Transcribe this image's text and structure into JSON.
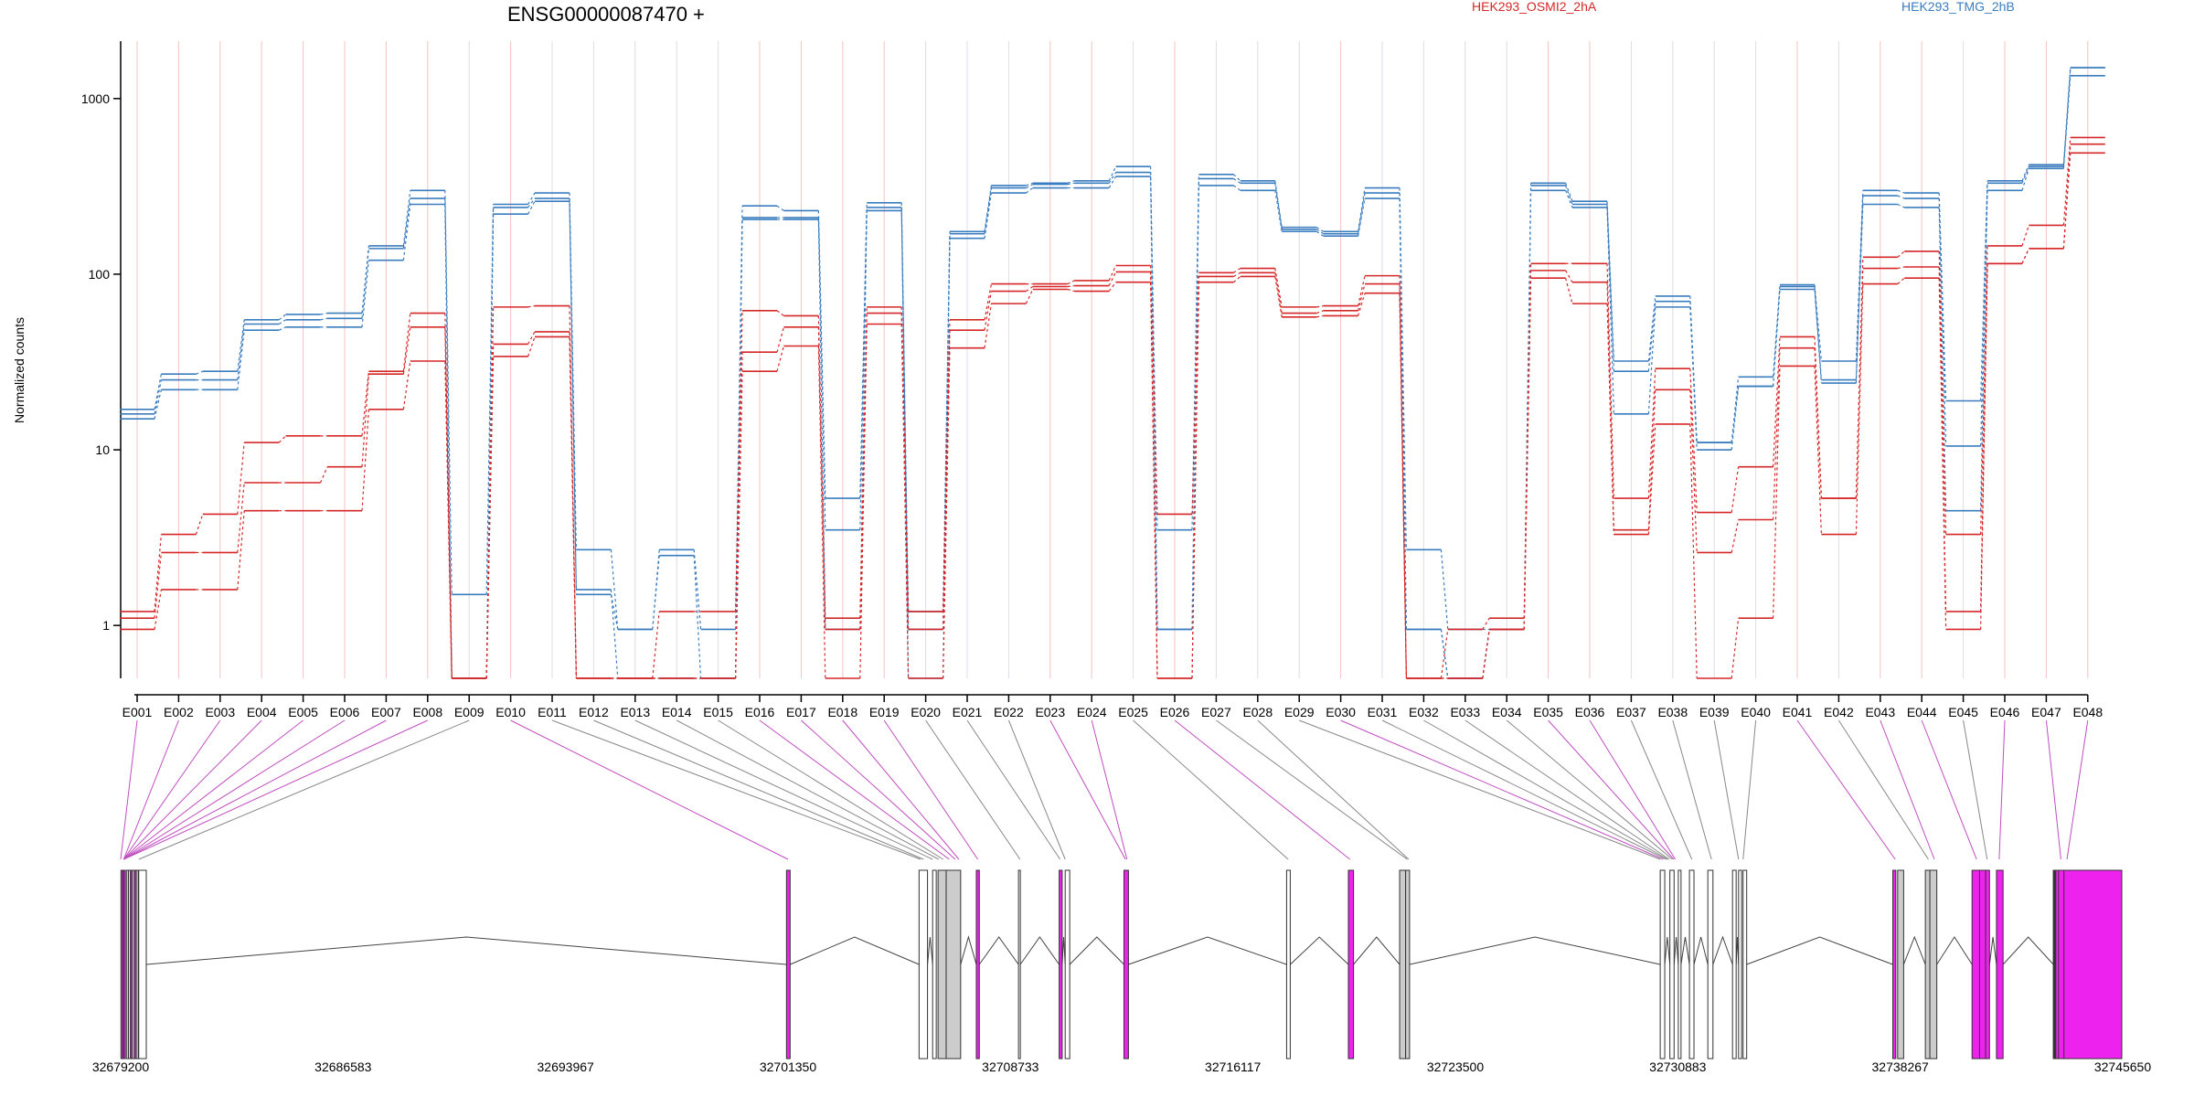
{
  "chart_data": {
    "type": "line",
    "title": "ENSG00000087470 +",
    "ylabel": "Normalized counts",
    "y_scale": "log10",
    "ylim": [
      0.6,
      2000
    ],
    "y_ticks": [
      1,
      10,
      100,
      1000
    ],
    "y_tick_labels": [
      "1",
      "10",
      "100",
      "1000"
    ],
    "zero_count_floor": 0.5,
    "grid": "vertical exon guide lines",
    "legend": [
      {
        "name": "HEK293_OSMI2_2hA",
        "color": "#d62728"
      },
      {
        "name": "HEK293_TMG_2hB",
        "color": "#3a7dbf"
      }
    ],
    "categories": [
      "E001",
      "E002",
      "E003",
      "E004",
      "E005",
      "E006",
      "E007",
      "E008",
      "E009",
      "E010",
      "E011",
      "E012",
      "E013",
      "E014",
      "E015",
      "E016",
      "E017",
      "E018",
      "E019",
      "E020",
      "E021",
      "E022",
      "E023",
      "E024",
      "E025",
      "E026",
      "E027",
      "E028",
      "E029",
      "E030",
      "E031",
      "E032",
      "E033",
      "E034",
      "E035",
      "E036",
      "E037",
      "E038",
      "E039",
      "E040",
      "E041",
      "E042",
      "E043",
      "E044",
      "E045",
      "E046",
      "E047",
      "E048"
    ],
    "series": [
      {
        "group": "HEK293_TMG_2hB",
        "color": "#3a7dbf",
        "values": [
          17,
          27,
          28,
          55,
          59,
          60,
          145,
          300,
          1.5,
          250,
          290,
          2.7,
          0.95,
          2.7,
          0.95,
          245,
          230,
          5.3,
          255,
          1.2,
          175,
          320,
          330,
          340,
          410,
          0.95,
          370,
          340,
          185,
          175,
          310,
          2.7,
          0.95,
          0.95,
          330,
          260,
          32,
          75,
          11,
          26,
          87,
          32,
          300,
          290,
          19,
          340,
          420,
          1500
        ]
      },
      {
        "group": "HEK293_TMG_2hB",
        "color": "#3a7dbf",
        "values": [
          16,
          25,
          25,
          52,
          55,
          56,
          140,
          270,
          0.5,
          240,
          270,
          1.5,
          0.95,
          2.5,
          0.5,
          210,
          210,
          3.5,
          240,
          0.5,
          170,
          310,
          325,
          330,
          380,
          3.5,
          350,
          330,
          180,
          170,
          290,
          0.95,
          0.5,
          0.95,
          320,
          250,
          28,
          70,
          11,
          23,
          85,
          25,
          280,
          270,
          10.5,
          330,
          410,
          1500
        ]
      },
      {
        "group": "HEK293_TMG_2hB",
        "color": "#3a7dbf",
        "values": [
          15,
          22,
          22,
          48,
          50,
          50,
          120,
          250,
          0.5,
          220,
          260,
          1.6,
          0.5,
          0.5,
          0.5,
          205,
          205,
          0.95,
          230,
          0.95,
          160,
          290,
          310,
          310,
          360,
          0.95,
          320,
          300,
          175,
          165,
          270,
          0.95,
          0.5,
          0.95,
          300,
          240,
          16,
          65,
          10,
          23,
          82,
          24,
          250,
          240,
          4.5,
          300,
          400,
          1350
        ]
      },
      {
        "group": "HEK293_OSMI2_2hA",
        "color": "#d62728",
        "values": [
          1.2,
          3.3,
          4.3,
          11,
          12,
          12,
          28,
          60,
          0.5,
          65,
          66,
          0.5,
          0.5,
          1.2,
          1.2,
          62,
          58,
          1.1,
          65,
          1.2,
          55,
          88,
          88,
          92,
          112,
          4.3,
          102,
          108,
          65,
          66,
          98,
          0.5,
          0.95,
          1.1,
          115,
          115,
          5.3,
          29,
          4.4,
          8,
          44,
          5.3,
          125,
          135,
          3.3,
          145,
          190,
          600
        ]
      },
      {
        "group": "HEK293_OSMI2_2hA",
        "color": "#d62728",
        "values": [
          1.1,
          2.6,
          2.6,
          6.5,
          6.5,
          8,
          27,
          50,
          0.5,
          40,
          47,
          0.5,
          0.5,
          0.5,
          0.5,
          36,
          50,
          0.95,
          60,
          0.95,
          48,
          80,
          85,
          86,
          103,
          0.5,
          97,
          102,
          60,
          62,
          88,
          0.5,
          0.5,
          0.95,
          105,
          90,
          3.5,
          22,
          2.6,
          4,
          38,
          5.3,
          108,
          110,
          1.2,
          115,
          140,
          550
        ]
      },
      {
        "group": "HEK293_OSMI2_2hA",
        "color": "#d62728",
        "values": [
          0.95,
          1.6,
          1.6,
          4.5,
          4.5,
          4.5,
          17,
          32,
          0.5,
          34,
          44,
          0.5,
          0.5,
          0.5,
          0.5,
          28,
          39,
          0.5,
          52,
          0.5,
          38,
          68,
          82,
          80,
          90,
          0.5,
          90,
          97,
          57,
          58,
          78,
          0.5,
          0.5,
          0.95,
          95,
          68,
          3.3,
          14,
          0.5,
          1.1,
          30,
          3.3,
          88,
          95,
          0.95,
          115,
          140,
          490
        ]
      }
    ],
    "gene_model": {
      "coordinate_range": [
        32679200,
        32745650
      ],
      "coordinate_ticks": [
        32679200,
        32686583,
        32693967,
        32701350,
        32708733,
        32716117,
        32723500,
        32730883,
        32738267,
        32745650
      ],
      "coordinate_tick_labels": [
        "32679200",
        "32686583",
        "32693967",
        "32701350",
        "32708733",
        "32716117",
        "32723500",
        "32730883",
        "32738267",
        "32745650"
      ],
      "colors": {
        "significant": "#ee22ee",
        "grey": "#cccccc",
        "plain": "#ffffff"
      },
      "exons": [
        {
          "start": 32679210,
          "end": 32679260,
          "fill": "magenta"
        },
        {
          "start": 32679290,
          "end": 32679330,
          "fill": "magenta"
        },
        {
          "start": 32679390,
          "end": 32679440,
          "fill": "plain"
        },
        {
          "start": 32679460,
          "end": 32679510,
          "fill": "plain"
        },
        {
          "start": 32679530,
          "end": 32679570,
          "fill": "magenta"
        },
        {
          "start": 32679590,
          "end": 32679640,
          "fill": "plain"
        },
        {
          "start": 32679660,
          "end": 32679700,
          "fill": "magenta"
        },
        {
          "start": 32679720,
          "end": 32679780,
          "fill": "plain"
        },
        {
          "start": 32679800,
          "end": 32680050,
          "fill": "plain"
        },
        {
          "start": 32701300,
          "end": 32701420,
          "fill": "magenta"
        },
        {
          "start": 32705700,
          "end": 32705980,
          "fill": "plain"
        },
        {
          "start": 32706150,
          "end": 32706270,
          "fill": "plain"
        },
        {
          "start": 32706330,
          "end": 32706600,
          "fill": "grey"
        },
        {
          "start": 32706600,
          "end": 32707080,
          "fill": "grey"
        },
        {
          "start": 32707600,
          "end": 32707700,
          "fill": "magenta"
        },
        {
          "start": 32709000,
          "end": 32709060,
          "fill": "plain"
        },
        {
          "start": 32710350,
          "end": 32710450,
          "fill": "magenta"
        },
        {
          "start": 32710550,
          "end": 32710700,
          "fill": "plain"
        },
        {
          "start": 32712500,
          "end": 32712650,
          "fill": "magenta"
        },
        {
          "start": 32717900,
          "end": 32718020,
          "fill": "plain"
        },
        {
          "start": 32719950,
          "end": 32720120,
          "fill": "magenta"
        },
        {
          "start": 32721650,
          "end": 32721850,
          "fill": "grey"
        },
        {
          "start": 32721850,
          "end": 32721980,
          "fill": "grey"
        },
        {
          "start": 32730300,
          "end": 32730450,
          "fill": "plain"
        },
        {
          "start": 32730620,
          "end": 32730760,
          "fill": "plain"
        },
        {
          "start": 32730900,
          "end": 32730990,
          "fill": "plain"
        },
        {
          "start": 32731270,
          "end": 32731420,
          "fill": "plain"
        },
        {
          "start": 32731880,
          "end": 32732050,
          "fill": "plain"
        },
        {
          "start": 32732700,
          "end": 32732820,
          "fill": "plain"
        },
        {
          "start": 32732900,
          "end": 32733000,
          "fill": "plain"
        },
        {
          "start": 32733050,
          "end": 32733170,
          "fill": "plain"
        },
        {
          "start": 32738020,
          "end": 32738120,
          "fill": "magenta"
        },
        {
          "start": 32738180,
          "end": 32738380,
          "fill": "grey"
        },
        {
          "start": 32739100,
          "end": 32739250,
          "fill": "grey"
        },
        {
          "start": 32739250,
          "end": 32739480,
          "fill": "grey"
        },
        {
          "start": 32740650,
          "end": 32740900,
          "fill": "magenta"
        },
        {
          "start": 32740900,
          "end": 32741100,
          "fill": "magenta"
        },
        {
          "start": 32741100,
          "end": 32741230,
          "fill": "magenta"
        },
        {
          "start": 32741460,
          "end": 32741680,
          "fill": "magenta"
        },
        {
          "start": 32743520,
          "end": 32743700,
          "fill": "magenta"
        },
        {
          "start": 32743350,
          "end": 32743450,
          "fill": "plain"
        },
        {
          "start": 32743350,
          "end": 32743420,
          "fill": "plain"
        },
        {
          "start": 32743360,
          "end": 32743390,
          "fill": "plain"
        },
        {
          "start": 32743370,
          "end": 32743400,
          "fill": "plain"
        },
        {
          "start": 32743380,
          "end": 32743410,
          "fill": "plain"
        },
        {
          "start": 32743390,
          "end": 32743420,
          "fill": "plain"
        },
        {
          "start": 32743400,
          "end": 32743430,
          "fill": "plain"
        },
        {
          "start": 32743410,
          "end": 32743440,
          "fill": "plain"
        },
        {
          "start": 32743430,
          "end": 32745620,
          "fill": "magenta"
        }
      ],
      "connectors": [
        {
          "exon": "E001",
          "pos": 32679200,
          "color": "magenta"
        },
        {
          "exon": "E002",
          "pos": 32679300,
          "color": "magenta"
        },
        {
          "exon": "E003",
          "pos": 32679300,
          "color": "magenta"
        },
        {
          "exon": "E004",
          "pos": 32679300,
          "color": "magenta"
        },
        {
          "exon": "E005",
          "pos": 32679300,
          "color": "magenta"
        },
        {
          "exon": "E006",
          "pos": 32679300,
          "color": "magenta"
        },
        {
          "exon": "E007",
          "pos": 32679300,
          "color": "magenta"
        },
        {
          "exon": "E008",
          "pos": 32679300,
          "color": "magenta"
        },
        {
          "exon": "E009",
          "pos": 32679800,
          "color": "grey"
        },
        {
          "exon": "E010",
          "pos": 32701350,
          "color": "magenta"
        },
        {
          "exon": "E011",
          "pos": 32705750,
          "color": "grey"
        },
        {
          "exon": "E012",
          "pos": 32705850,
          "color": "grey"
        },
        {
          "exon": "E013",
          "pos": 32706150,
          "color": "grey"
        },
        {
          "exon": "E014",
          "pos": 32706350,
          "color": "grey"
        },
        {
          "exon": "E015",
          "pos": 32706500,
          "color": "grey"
        },
        {
          "exon": "E016",
          "pos": 32706700,
          "color": "magenta"
        },
        {
          "exon": "E017",
          "pos": 32706900,
          "color": "magenta"
        },
        {
          "exon": "E018",
          "pos": 32707020,
          "color": "magenta"
        },
        {
          "exon": "E019",
          "pos": 32707650,
          "color": "magenta"
        },
        {
          "exon": "E020",
          "pos": 32709050,
          "color": "grey"
        },
        {
          "exon": "E021",
          "pos": 32710380,
          "color": "grey"
        },
        {
          "exon": "E022",
          "pos": 32710550,
          "color": "grey"
        },
        {
          "exon": "E023",
          "pos": 32712550,
          "color": "magenta"
        },
        {
          "exon": "E024",
          "pos": 32712600,
          "color": "magenta"
        },
        {
          "exon": "E025",
          "pos": 32717950,
          "color": "grey"
        },
        {
          "exon": "E026",
          "pos": 32720000,
          "color": "magenta"
        },
        {
          "exon": "E027",
          "pos": 32721900,
          "color": "grey"
        },
        {
          "exon": "E028",
          "pos": 32721950,
          "color": "grey"
        },
        {
          "exon": "E029",
          "pos": 32730300,
          "color": "grey"
        },
        {
          "exon": "E030",
          "pos": 32730400,
          "color": "magenta"
        },
        {
          "exon": "E031",
          "pos": 32730500,
          "color": "grey"
        },
        {
          "exon": "E032",
          "pos": 32730550,
          "color": "grey"
        },
        {
          "exon": "E033",
          "pos": 32730600,
          "color": "grey"
        },
        {
          "exon": "E034",
          "pos": 32730700,
          "color": "grey"
        },
        {
          "exon": "E035",
          "pos": 32730750,
          "color": "magenta"
        },
        {
          "exon": "E036",
          "pos": 32730800,
          "color": "magenta"
        },
        {
          "exon": "E037",
          "pos": 32731350,
          "color": "grey"
        },
        {
          "exon": "E038",
          "pos": 32732000,
          "color": "grey"
        },
        {
          "exon": "E039",
          "pos": 32732900,
          "color": "grey"
        },
        {
          "exon": "E040",
          "pos": 32733050,
          "color": "grey"
        },
        {
          "exon": "E041",
          "pos": 32738100,
          "color": "magenta"
        },
        {
          "exon": "E042",
          "pos": 32739200,
          "color": "grey"
        },
        {
          "exon": "E043",
          "pos": 32739400,
          "color": "magenta"
        },
        {
          "exon": "E044",
          "pos": 32740800,
          "color": "magenta"
        },
        {
          "exon": "E045",
          "pos": 32741150,
          "color": "grey"
        },
        {
          "exon": "E046",
          "pos": 32741550,
          "color": "magenta"
        },
        {
          "exon": "E047",
          "pos": 32743600,
          "color": "magenta"
        },
        {
          "exon": "E048",
          "pos": 32743800,
          "color": "magenta"
        }
      ]
    }
  }
}
